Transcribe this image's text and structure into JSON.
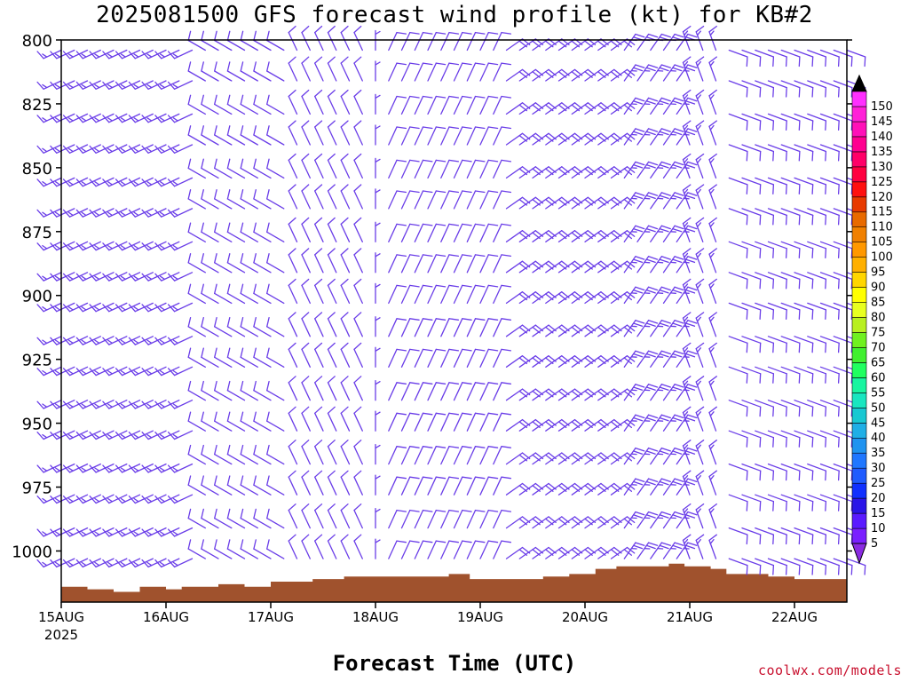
{
  "title": "2025081500 GFS forecast wind profile (kt) for KB#2",
  "xlabel": "Forecast Time (UTC)",
  "credit": "coolwx.com/models",
  "chart_data": {
    "type": "wind-barb time-height",
    "y_axis": {
      "label": "",
      "unit": "hPa",
      "ticks": [
        800,
        825,
        850,
        875,
        900,
        925,
        950,
        975,
        1000
      ],
      "range": [
        1020,
        800
      ]
    },
    "x_axis": {
      "ticks": [
        {
          "date": "15AUG",
          "year": "2025"
        },
        {
          "date": "16AUG"
        },
        {
          "date": "17AUG"
        },
        {
          "date": "18AUG"
        },
        {
          "date": "19AUG"
        },
        {
          "date": "20AUG"
        },
        {
          "date": "21AUG"
        },
        {
          "date": "22AUG"
        }
      ],
      "range_days": [
        0,
        7.5
      ],
      "step_hours": 3
    },
    "levels_hpa": [
      804,
      816,
      829,
      841,
      854,
      866,
      879,
      891,
      903,
      916,
      928,
      941,
      953,
      966,
      978,
      991,
      1003
    ],
    "wind_segments": [
      {
        "from_day": 0.0,
        "to_day": 1.35,
        "direction_deg": 245,
        "speed_kt": 15
      },
      {
        "from_day": 1.35,
        "to_day": 2.25,
        "direction_deg": 300,
        "speed_kt": 10
      },
      {
        "from_day": 2.25,
        "to_day": 2.9,
        "direction_deg": 335,
        "speed_kt": 10
      },
      {
        "from_day": 2.9,
        "to_day": 3.1,
        "direction_deg": 0,
        "speed_kt": 5
      },
      {
        "from_day": 3.1,
        "to_day": 4.2,
        "direction_deg": 25,
        "speed_kt": 10
      },
      {
        "from_day": 4.2,
        "to_day": 5.3,
        "direction_deg": 55,
        "speed_kt": 20
      },
      {
        "from_day": 5.3,
        "to_day": 6.0,
        "direction_deg": 35,
        "speed_kt": 25
      },
      {
        "from_day": 6.0,
        "to_day": 6.35,
        "direction_deg": 340,
        "speed_kt": 15
      },
      {
        "from_day": 6.35,
        "to_day": 7.5,
        "direction_deg": 110,
        "speed_kt": 10
      }
    ],
    "terrain_surface_hpa": [
      [
        0.0,
        1014
      ],
      [
        0.25,
        1015
      ],
      [
        0.5,
        1016
      ],
      [
        0.75,
        1014
      ],
      [
        1.0,
        1015
      ],
      [
        1.15,
        1014
      ],
      [
        1.5,
        1013
      ],
      [
        1.75,
        1014
      ],
      [
        2.0,
        1012
      ],
      [
        2.4,
        1011
      ],
      [
        2.7,
        1010
      ],
      [
        3.0,
        1010
      ],
      [
        3.3,
        1010
      ],
      [
        3.55,
        1010
      ],
      [
        3.7,
        1009
      ],
      [
        3.9,
        1011
      ],
      [
        4.25,
        1011
      ],
      [
        4.6,
        1010
      ],
      [
        4.85,
        1009
      ],
      [
        5.1,
        1007
      ],
      [
        5.3,
        1006
      ],
      [
        5.7,
        1006
      ],
      [
        5.8,
        1005
      ],
      [
        5.95,
        1006
      ],
      [
        6.2,
        1007
      ],
      [
        6.35,
        1009
      ],
      [
        6.75,
        1010
      ],
      [
        7.0,
        1011
      ],
      [
        7.5,
        1012
      ]
    ],
    "terrain_color": "#a0522d",
    "barb_color": "#6a3de8",
    "colorbar": {
      "labels": [
        5,
        10,
        15,
        20,
        25,
        30,
        35,
        40,
        45,
        50,
        55,
        60,
        65,
        70,
        75,
        80,
        85,
        90,
        95,
        100,
        105,
        110,
        115,
        120,
        125,
        130,
        135,
        140,
        145,
        150
      ],
      "colors": [
        "#7a1fff",
        "#5a1aff",
        "#2a14e8",
        "#1030ff",
        "#1f5bff",
        "#1f77ff",
        "#1f93f0",
        "#1fafe6",
        "#18c8d2",
        "#18e6c0",
        "#18f5a0",
        "#20ff60",
        "#40f030",
        "#70f020",
        "#b8f020",
        "#e8ff20",
        "#ffff00",
        "#ffd600",
        "#ffb000",
        "#ff9800",
        "#f08000",
        "#e86a00",
        "#e83a00",
        "#ff1010",
        "#ff0040",
        "#ff0068",
        "#ff0090",
        "#ff10b8",
        "#ff20d8",
        "#ff30ff"
      ],
      "extend_low_color": "#8a2be2",
      "extend_high_color": "#000000"
    }
  }
}
